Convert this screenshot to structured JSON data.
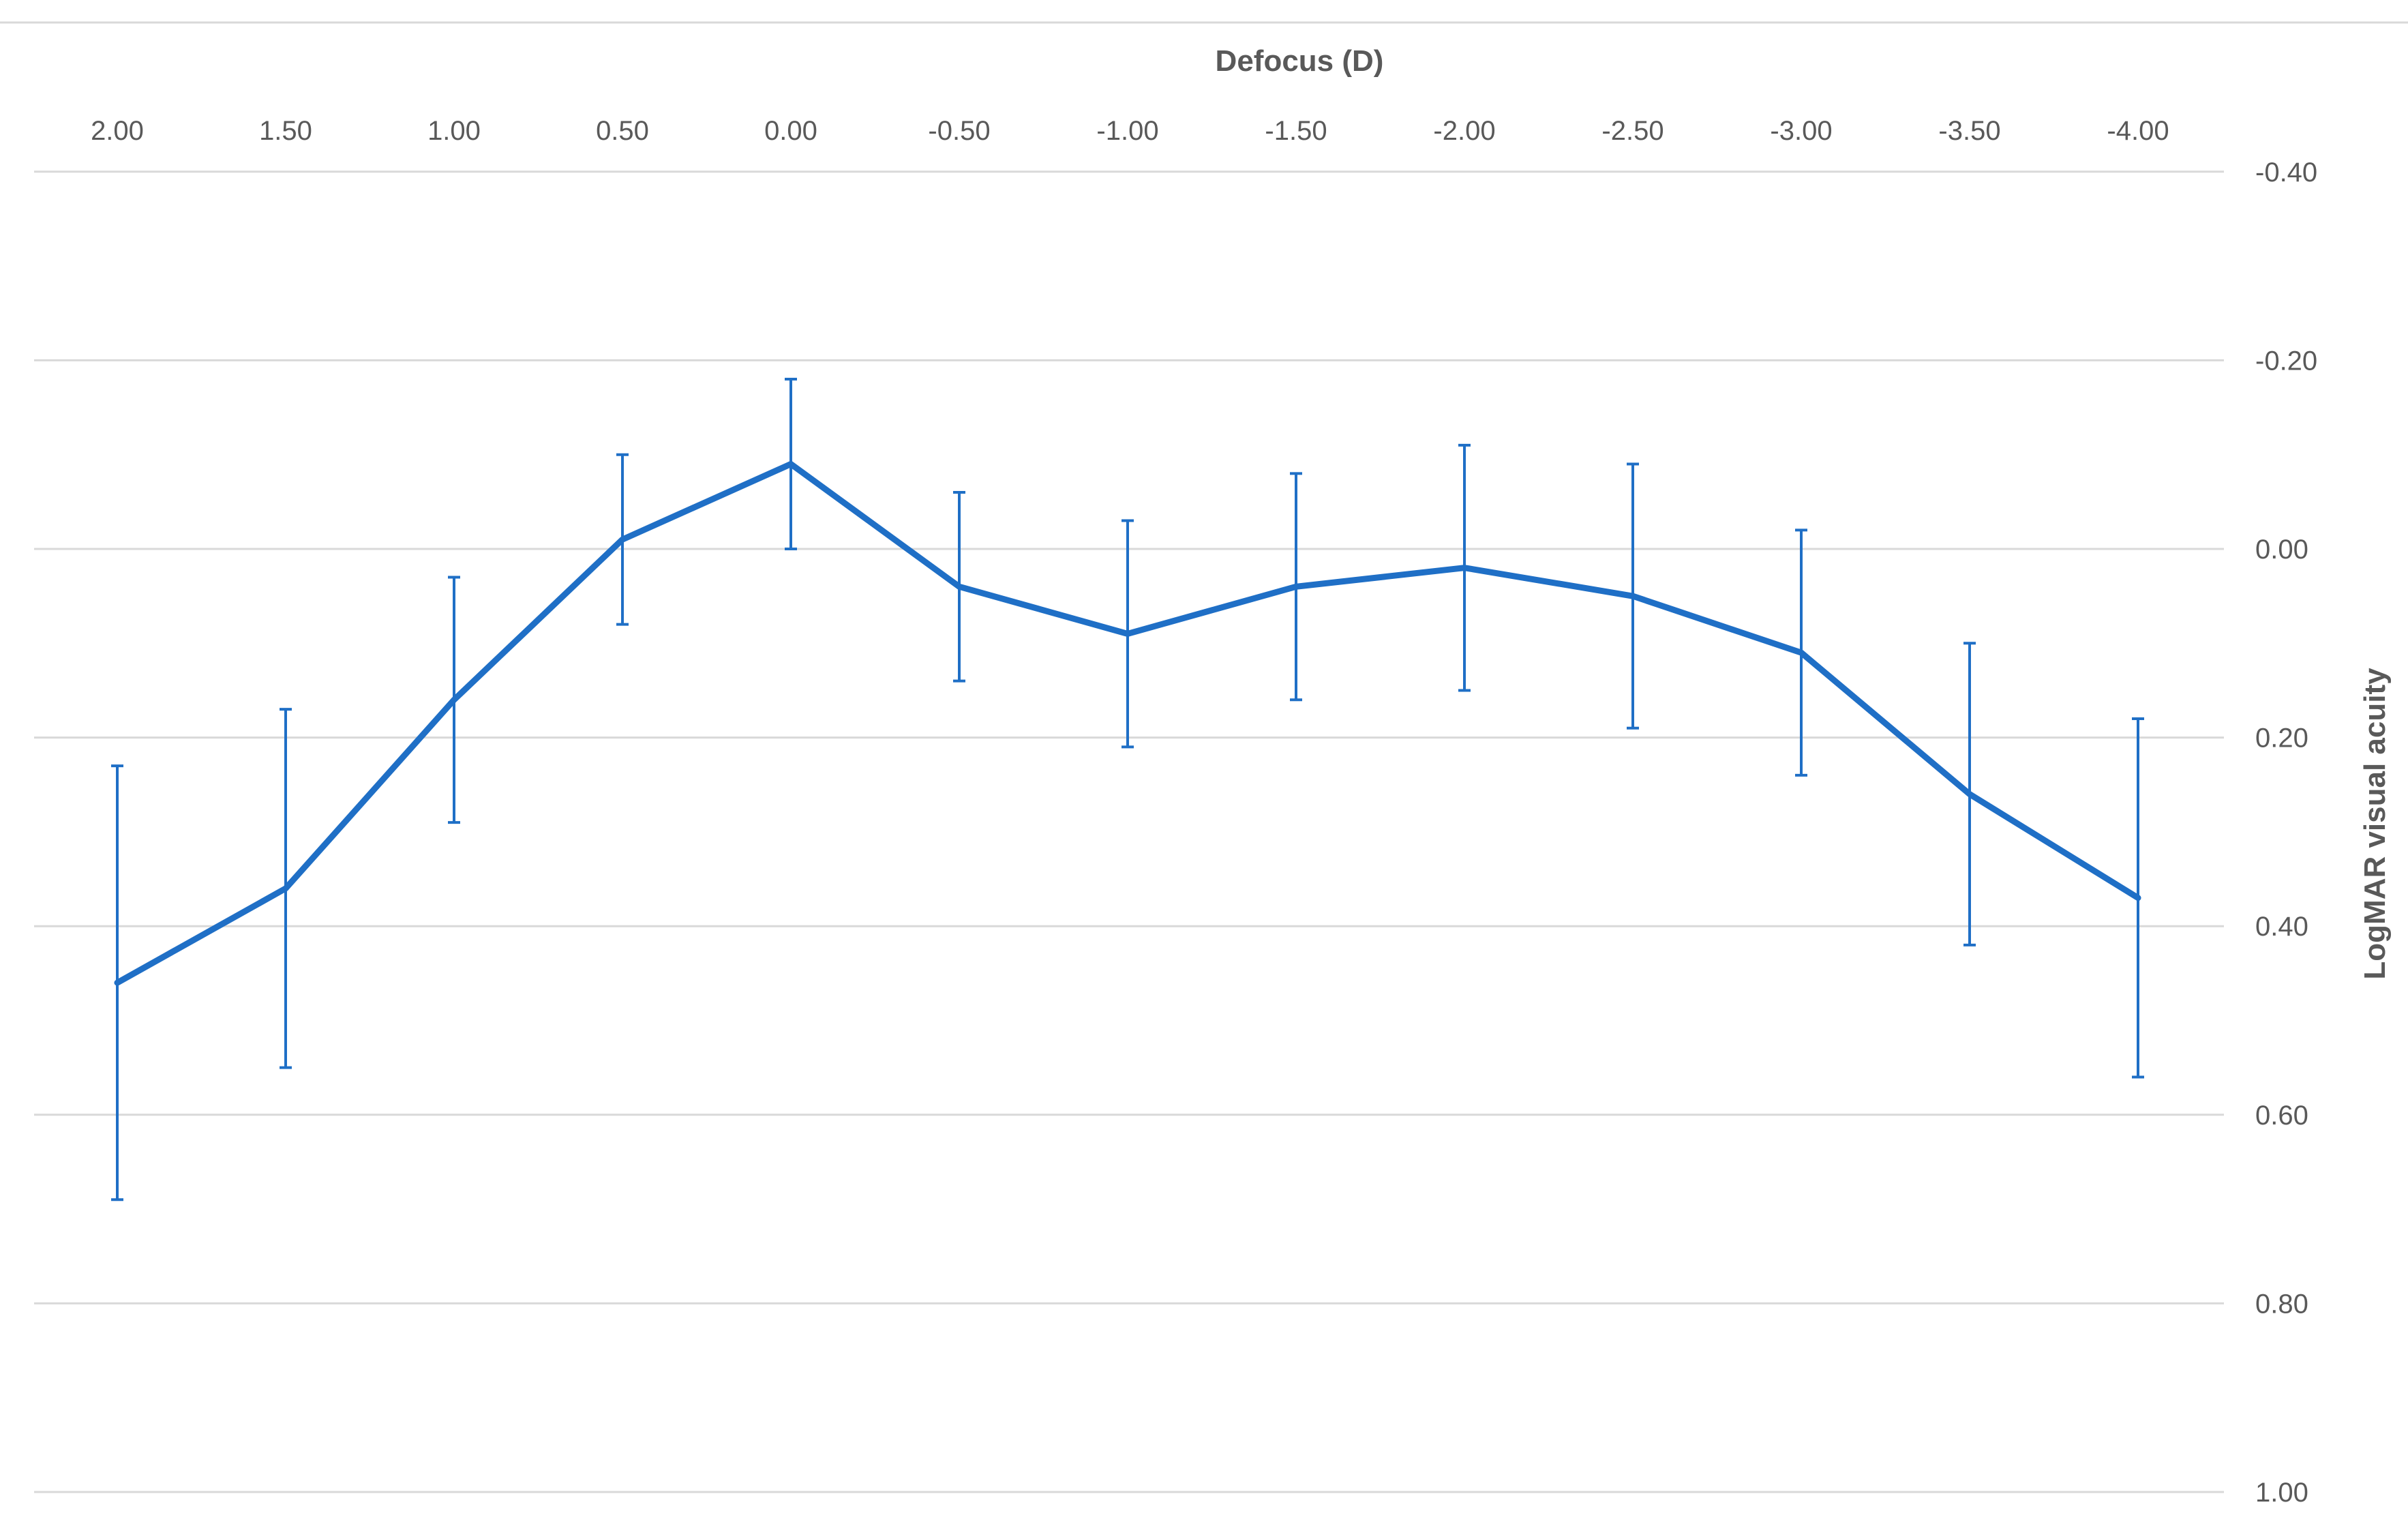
{
  "chart_data": {
    "type": "line",
    "xlabel": "Defocus (D)",
    "ylabel": "LogMAR visual acuity",
    "x_axis_position": "top",
    "y_axis_position": "right",
    "x_reversed": true,
    "y_reversed": true,
    "grid": true,
    "ylim": [
      -0.4,
      1.0
    ],
    "yticks": [
      "-0.40",
      "-0.20",
      "0.00",
      "0.20",
      "0.40",
      "0.60",
      "0.80",
      "1.00"
    ],
    "categories": [
      "2.00",
      "1.50",
      "1.00",
      "0.50",
      "0.00",
      "-0.50",
      "-1.00",
      "-1.50",
      "-2.00",
      "-2.50",
      "-3.00",
      "-3.50",
      "-4.00"
    ],
    "series": [
      {
        "values": [
          0.46,
          0.36,
          0.16,
          -0.01,
          -0.09,
          0.04,
          0.09,
          0.04,
          0.02,
          0.05,
          0.11,
          0.26,
          0.37
        ],
        "error_low": [
          0.69,
          0.55,
          0.29,
          0.08,
          0.0,
          0.14,
          0.21,
          0.16,
          0.15,
          0.19,
          0.24,
          0.42,
          0.56
        ],
        "error_high": [
          0.23,
          0.17,
          0.03,
          -0.1,
          -0.18,
          -0.06,
          -0.03,
          -0.08,
          -0.11,
          -0.09,
          -0.02,
          0.1,
          0.18
        ],
        "color": "#1F6FC6"
      }
    ],
    "colors": {
      "grid": "#D9D9D9",
      "tick_text": "#595959"
    }
  }
}
